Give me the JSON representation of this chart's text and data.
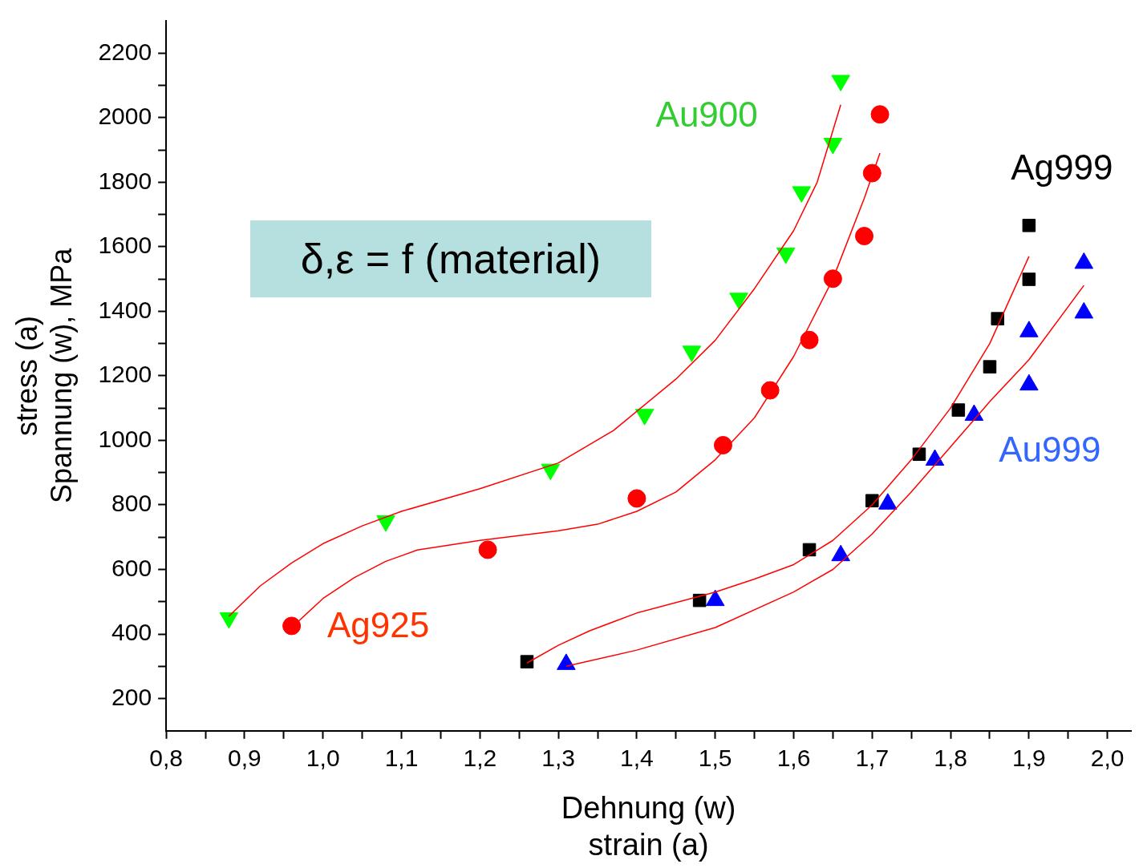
{
  "chart_data": {
    "type": "scatter",
    "xlabel": "Dehnung (w)\nstrain (a)",
    "ylabel": "stress (a)\nSpannung (w), MPa",
    "annotations": [
      "δ,ε = f (material)"
    ],
    "xlim": [
      0.8,
      2.03
    ],
    "ylim": [
      100,
      2300
    ],
    "xticks": [
      {
        "value": 0.8,
        "label": "0,8"
      },
      {
        "value": 0.85,
        "label": null
      },
      {
        "value": 0.9,
        "label": "0,9"
      },
      {
        "value": 0.95,
        "label": null
      },
      {
        "value": 1.0,
        "label": "1,0"
      },
      {
        "value": 1.05,
        "label": null
      },
      {
        "value": 1.1,
        "label": "1,1"
      },
      {
        "value": 1.15,
        "label": null
      },
      {
        "value": 1.2,
        "label": "1,2"
      },
      {
        "value": 1.25,
        "label": null
      },
      {
        "value": 1.3,
        "label": "1,3"
      },
      {
        "value": 1.35,
        "label": null
      },
      {
        "value": 1.4,
        "label": "1,4"
      },
      {
        "value": 1.45,
        "label": null
      },
      {
        "value": 1.5,
        "label": "1,5"
      },
      {
        "value": 1.55,
        "label": null
      },
      {
        "value": 1.6,
        "label": "1,6"
      },
      {
        "value": 1.65,
        "label": null
      },
      {
        "value": 1.7,
        "label": "1,7"
      },
      {
        "value": 1.75,
        "label": null
      },
      {
        "value": 1.8,
        "label": "1,8"
      },
      {
        "value": 1.85,
        "label": null
      },
      {
        "value": 1.9,
        "label": "1,9"
      },
      {
        "value": 1.95,
        "label": null
      },
      {
        "value": 2.0,
        "label": "2,0"
      }
    ],
    "yticks": [
      200,
      {
        "value": 300,
        "label": null
      },
      400,
      {
        "value": 500,
        "label": null
      },
      600,
      {
        "value": 700,
        "label": null
      },
      800,
      {
        "value": 900,
        "label": null
      },
      1000,
      {
        "value": 1100,
        "label": null
      },
      1200,
      {
        "value": 1300,
        "label": null
      },
      1400,
      {
        "value": 1500,
        "label": null
      },
      1600,
      {
        "value": 1700,
        "label": null
      },
      1800,
      {
        "value": 1900,
        "label": null
      },
      2000,
      {
        "value": 2100,
        "label": null
      },
      2200
    ],
    "grid": false,
    "legend": false,
    "series": [
      {
        "name": "Au900",
        "color": "#00ff00",
        "marker": "triangle",
        "x": [
          0.88,
          1.08,
          1.29,
          1.41,
          1.47,
          1.53,
          1.59,
          1.61,
          1.65,
          1.66
        ],
        "values": [
          450,
          750,
          910,
          1080,
          1276,
          1440,
          1580,
          1770,
          1920,
          2115
        ]
      },
      {
        "name": "Ag925",
        "color": "#ff0000",
        "marker": "circle",
        "x": [
          0.96,
          1.21,
          1.4,
          1.51,
          1.57,
          1.62,
          1.65,
          1.69,
          1.7,
          1.71
        ],
        "values": [
          425,
          661,
          820,
          985,
          1155,
          1311,
          1501,
          1633,
          1828,
          2010
        ]
      },
      {
        "name": "Ag999",
        "color": "#000000",
        "marker": "square",
        "x": [
          1.26,
          1.48,
          1.62,
          1.7,
          1.76,
          1.81,
          1.85,
          1.86,
          1.9,
          1.9
        ],
        "values": [
          314,
          504,
          661,
          813,
          957,
          1094,
          1228,
          1377,
          1499,
          1666
        ]
      },
      {
        "name": "Au999",
        "color": "#0000ff",
        "marker": "triangle",
        "x": [
          1.31,
          1.5,
          1.66,
          1.72,
          1.78,
          1.83,
          1.9,
          1.9,
          1.97,
          1.97
        ],
        "values": [
          306,
          504,
          643,
          803,
          939,
          1078,
          1172,
          1337,
          1395,
          1549
        ]
      },
      {
        "type": "line",
        "color": "#ff0000",
        "marker": "none",
        "x": [
          0.88,
          0.92,
          0.96,
          1.0,
          1.05,
          1.1,
          1.2,
          1.3,
          1.37,
          1.45,
          1.5,
          1.55,
          1.6,
          1.63,
          1.66
        ],
        "values": [
          455,
          549,
          620,
          680,
          735,
          780,
          850,
          930,
          1030,
          1190,
          1310,
          1470,
          1650,
          1800,
          2040
        ]
      },
      {
        "type": "line",
        "color": "#ff0000",
        "marker": "none",
        "x": [
          0.96,
          1.0,
          1.04,
          1.08,
          1.12,
          1.2,
          1.3,
          1.35,
          1.4,
          1.45,
          1.5,
          1.55,
          1.6,
          1.65,
          1.69,
          1.71
        ],
        "values": [
          420,
          510,
          575,
          625,
          660,
          690,
          720,
          740,
          780,
          840,
          940,
          1070,
          1260,
          1500,
          1750,
          1890
        ]
      },
      {
        "type": "line",
        "color": "#ff0000",
        "marker": "none",
        "x": [
          1.26,
          1.3,
          1.34,
          1.4,
          1.5,
          1.55,
          1.6,
          1.65,
          1.7,
          1.75,
          1.8,
          1.85,
          1.9
        ],
        "values": [
          310,
          365,
          410,
          465,
          530,
          570,
          615,
          690,
          800,
          940,
          1100,
          1300,
          1570
        ]
      },
      {
        "type": "line",
        "color": "#ff0000",
        "marker": "none",
        "x": [
          1.31,
          1.4,
          1.5,
          1.6,
          1.65,
          1.7,
          1.75,
          1.8,
          1.85,
          1.9,
          1.97
        ],
        "values": [
          300,
          350,
          420,
          530,
          600,
          710,
          840,
          980,
          1120,
          1250,
          1480
        ]
      }
    ]
  }
}
